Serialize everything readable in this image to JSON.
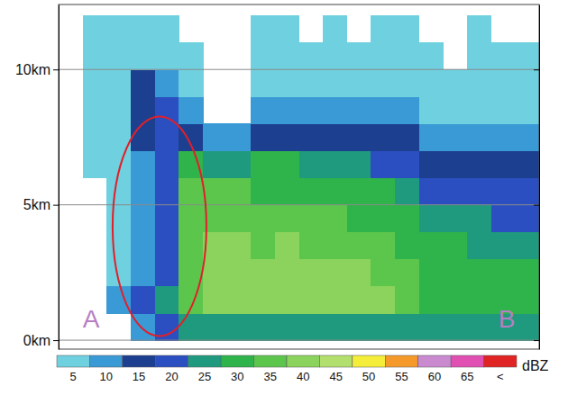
{
  "chart_data": {
    "type": "heatmap",
    "tick_labels": "y",
    "grid": true,
    "annotations": [
      "A",
      "B"
    ],
    "xlim": [
      0,
      20
    ],
    "ylim": [
      -0.33,
      12.4
    ],
    "yticks": [
      {
        "value": 0,
        "label": "0km"
      },
      {
        "value": 5,
        "label": "5km"
      },
      {
        "value": 10,
        "label": "10km"
      }
    ],
    "x_bins": [
      0,
      1,
      2,
      3,
      4,
      5,
      6,
      7,
      8,
      9,
      10,
      11,
      12,
      13,
      14,
      15,
      16,
      17,
      18,
      19,
      20
    ],
    "y_bins": [
      0,
      1,
      2,
      3,
      4,
      5,
      6,
      7,
      8,
      9,
      10,
      11,
      12
    ],
    "z": [
      [
        null,
        null,
        null,
        null,
        null,
        null,
        null,
        null,
        null,
        null,
        null,
        null
      ],
      [
        null,
        null,
        null,
        null,
        null,
        null,
        5,
        5,
        5,
        5,
        5,
        5
      ],
      [
        null,
        10,
        5,
        5,
        5,
        5,
        5,
        5,
        5,
        5,
        5,
        5
      ],
      [
        10,
        20,
        10,
        10,
        10,
        10,
        10,
        15,
        15,
        15,
        5,
        5
      ],
      [
        20,
        25,
        20,
        20,
        20,
        20,
        20,
        20,
        20,
        10,
        5,
        5
      ],
      [
        25,
        35,
        35,
        35,
        35,
        35,
        30,
        15,
        10,
        5,
        5,
        null
      ],
      [
        25,
        40,
        40,
        40,
        35,
        35,
        25,
        10,
        null,
        null,
        null,
        null
      ],
      [
        25,
        40,
        40,
        40,
        35,
        35,
        25,
        10,
        null,
        null,
        null,
        null
      ],
      [
        25,
        40,
        40,
        35,
        35,
        30,
        30,
        15,
        10,
        5,
        5,
        5
      ],
      [
        25,
        40,
        40,
        40,
        35,
        30,
        30,
        15,
        10,
        5,
        5,
        5
      ],
      [
        25,
        40,
        40,
        35,
        35,
        30,
        25,
        15,
        10,
        5,
        5,
        null
      ],
      [
        25,
        40,
        40,
        35,
        35,
        30,
        25,
        15,
        10,
        5,
        5,
        5
      ],
      [
        25,
        40,
        40,
        35,
        30,
        30,
        25,
        15,
        10,
        5,
        5,
        null
      ],
      [
        25,
        40,
        35,
        35,
        30,
        30,
        20,
        15,
        10,
        5,
        5,
        5
      ],
      [
        25,
        35,
        35,
        30,
        30,
        25,
        20,
        15,
        10,
        5,
        5,
        5
      ],
      [
        25,
        30,
        30,
        30,
        25,
        20,
        15,
        10,
        5,
        5,
        5,
        null
      ],
      [
        25,
        30,
        30,
        30,
        25,
        20,
        15,
        10,
        5,
        5,
        null,
        null
      ],
      [
        25,
        30,
        30,
        25,
        25,
        20,
        15,
        10,
        5,
        5,
        5,
        5
      ],
      [
        25,
        30,
        30,
        25,
        20,
        20,
        15,
        10,
        5,
        5,
        5,
        null
      ],
      [
        25,
        30,
        30,
        25,
        20,
        20,
        15,
        10,
        5,
        5,
        5,
        null
      ]
    ],
    "colorbar": {
      "label": "dBZ",
      "range": [
        2.5,
        72.5
      ],
      "ticks": [
        5,
        10,
        15,
        20,
        25,
        30,
        35,
        40,
        45,
        50,
        55,
        60,
        65,
        {
          "value": 70,
          "label": "<"
        }
      ],
      "colors": [
        "#6fd0e0",
        "#3a9ad6",
        "#1c3f8f",
        "#2b4fc0",
        "#1f9a7e",
        "#2fb34b",
        "#5cc64c",
        "#8bd35c",
        "#b3df6e",
        "#f4ee3a",
        "#f59a2a",
        "#c98ad0",
        "#e04fb2",
        "#e02424"
      ]
    }
  }
}
